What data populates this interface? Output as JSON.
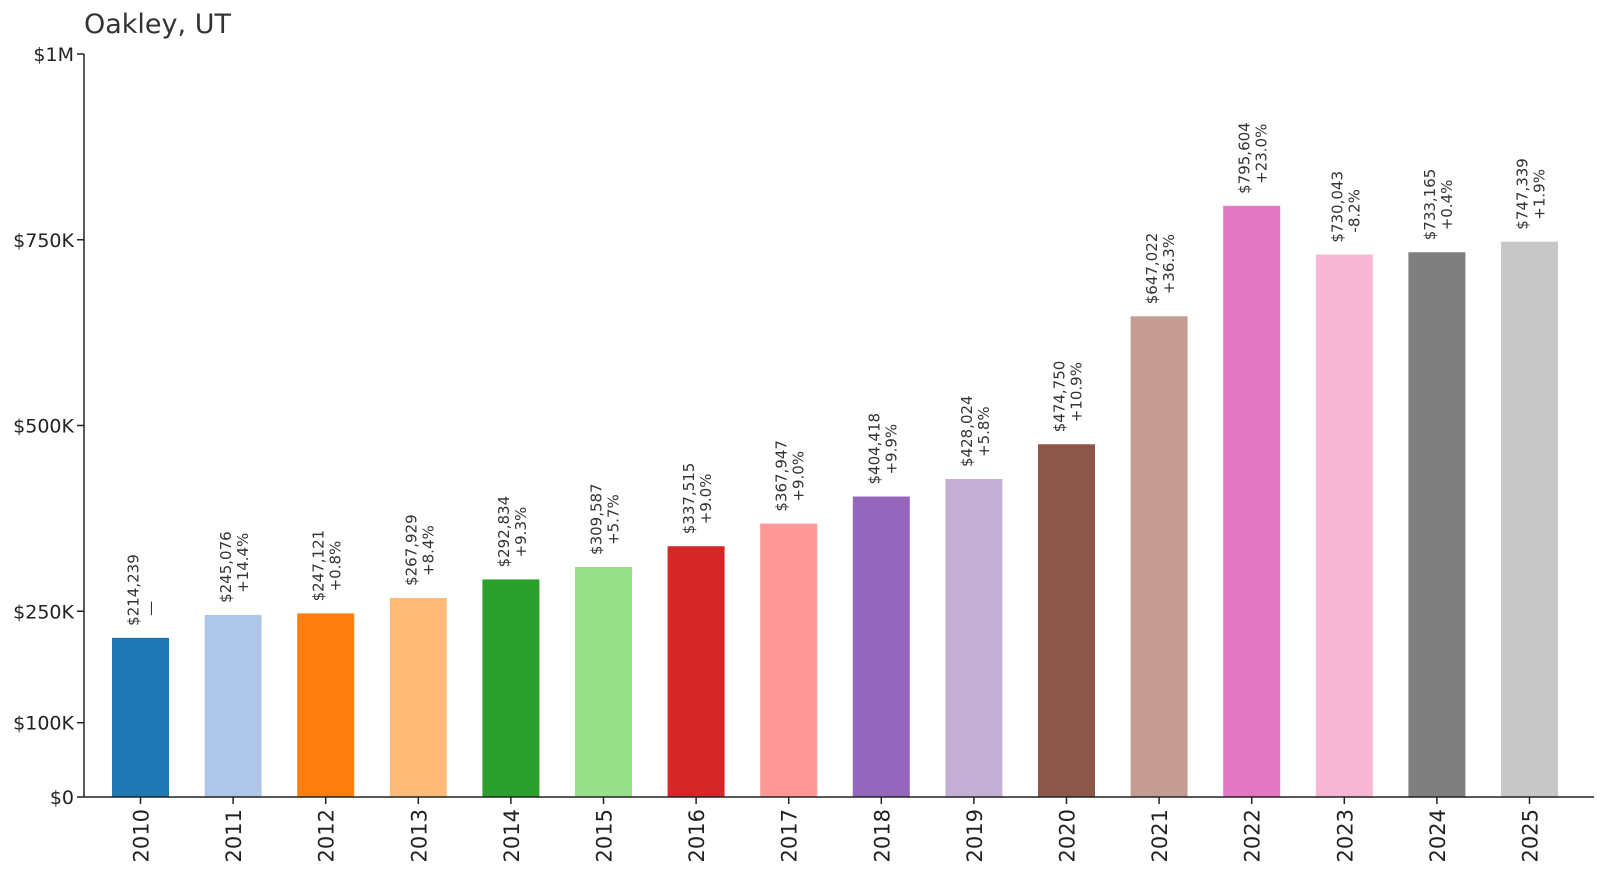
{
  "chart_data": {
    "type": "bar",
    "title": "Oakley, UT",
    "xlabel": "",
    "ylabel": "",
    "ylim": [
      0,
      1000000
    ],
    "grid": false,
    "legend": "none",
    "categories": [
      "2010",
      "2011",
      "2012",
      "2013",
      "2014",
      "2015",
      "2016",
      "2017",
      "2018",
      "2019",
      "2020",
      "2021",
      "2022",
      "2023",
      "2024",
      "2025"
    ],
    "values": [
      214239,
      245076,
      247121,
      267929,
      292834,
      309587,
      337515,
      367947,
      404418,
      428024,
      474750,
      647022,
      795604,
      730043,
      733165,
      747339
    ],
    "value_labels": [
      "$214,239",
      "$245,076",
      "$247,121",
      "$267,929",
      "$292,834",
      "$309,587",
      "$337,515",
      "$367,947",
      "$404,418",
      "$428,024",
      "$474,750",
      "$647,022",
      "$795,604",
      "$730,043",
      "$733,165",
      "$747,339"
    ],
    "change_labels": [
      "—",
      "+14.4%",
      "+0.8%",
      "+8.4%",
      "+9.3%",
      "+5.7%",
      "+9.0%",
      "+9.0%",
      "+9.9%",
      "+5.8%",
      "+10.9%",
      "+36.3%",
      "+23.0%",
      "-8.2%",
      "+0.4%",
      "+1.9%"
    ],
    "colors": [
      "#1f77b4",
      "#aec7e8",
      "#ff7f0e",
      "#ffbb78",
      "#2ca02c",
      "#98df8a",
      "#d62728",
      "#ff9896",
      "#9467bd",
      "#c5b0d5",
      "#8c564b",
      "#c49c94",
      "#e377c2",
      "#f7b6d2",
      "#7f7f7f",
      "#c7c7c7"
    ],
    "yticks": [
      {
        "value": 0,
        "label": "$0"
      },
      {
        "value": 100000,
        "label": "$100K"
      },
      {
        "value": 250000,
        "label": "$250K"
      },
      {
        "value": 500000,
        "label": "$500K"
      },
      {
        "value": 750000,
        "label": "$750K"
      },
      {
        "value": 1000000,
        "label": "$1M"
      }
    ]
  }
}
